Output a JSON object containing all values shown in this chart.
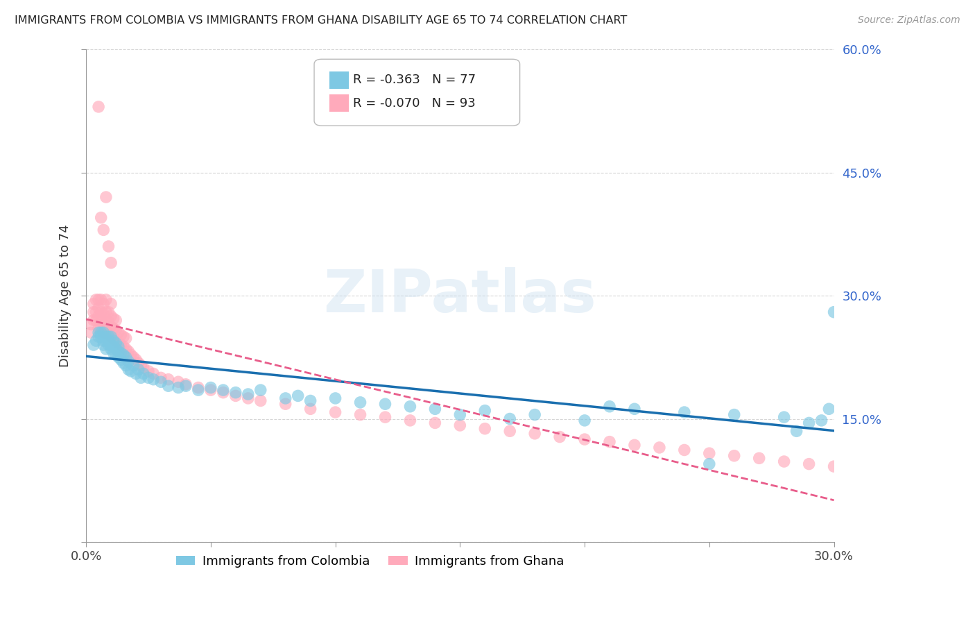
{
  "title": "IMMIGRANTS FROM COLOMBIA VS IMMIGRANTS FROM GHANA DISABILITY AGE 65 TO 74 CORRELATION CHART",
  "source": "Source: ZipAtlas.com",
  "ylabel": "Disability Age 65 to 74",
  "xlim": [
    0.0,
    0.3
  ],
  "ylim": [
    0.0,
    0.6
  ],
  "xticks": [
    0.0,
    0.05,
    0.1,
    0.15,
    0.2,
    0.25,
    0.3
  ],
  "xtick_labels": [
    "0.0%",
    "",
    "",
    "",
    "",
    "",
    "30.0%"
  ],
  "ytick_positions": [
    0.0,
    0.15,
    0.3,
    0.45,
    0.6
  ],
  "ytick_labels": [
    "",
    "15.0%",
    "30.0%",
    "45.0%",
    "60.0%"
  ],
  "legend_colombia": "Immigrants from Colombia",
  "legend_ghana": "Immigrants from Ghana",
  "R_colombia": "-0.363",
  "N_colombia": "77",
  "R_ghana": "-0.070",
  "N_ghana": "93",
  "color_colombia": "#7ec8e3",
  "color_ghana": "#ffaabb",
  "trend_colombia_color": "#1a6faf",
  "trend_ghana_color": "#e85c8a",
  "watermark": "ZIPatlas",
  "colombia_x": [
    0.003,
    0.004,
    0.005,
    0.005,
    0.006,
    0.006,
    0.007,
    0.007,
    0.007,
    0.008,
    0.008,
    0.008,
    0.009,
    0.009,
    0.009,
    0.01,
    0.01,
    0.01,
    0.011,
    0.011,
    0.011,
    0.012,
    0.012,
    0.012,
    0.013,
    0.013,
    0.013,
    0.014,
    0.014,
    0.015,
    0.015,
    0.016,
    0.016,
    0.017,
    0.017,
    0.018,
    0.019,
    0.02,
    0.021,
    0.022,
    0.023,
    0.025,
    0.027,
    0.03,
    0.033,
    0.037,
    0.04,
    0.045,
    0.05,
    0.055,
    0.06,
    0.065,
    0.07,
    0.08,
    0.085,
    0.09,
    0.1,
    0.11,
    0.12,
    0.13,
    0.14,
    0.15,
    0.16,
    0.17,
    0.18,
    0.2,
    0.21,
    0.22,
    0.24,
    0.26,
    0.28,
    0.29,
    0.295,
    0.298,
    0.3,
    0.285,
    0.25
  ],
  "colombia_y": [
    0.24,
    0.245,
    0.25,
    0.255,
    0.25,
    0.255,
    0.24,
    0.245,
    0.255,
    0.235,
    0.245,
    0.25,
    0.24,
    0.245,
    0.25,
    0.235,
    0.24,
    0.25,
    0.23,
    0.238,
    0.245,
    0.228,
    0.235,
    0.242,
    0.225,
    0.232,
    0.238,
    0.222,
    0.23,
    0.218,
    0.228,
    0.215,
    0.225,
    0.21,
    0.22,
    0.208,
    0.215,
    0.205,
    0.21,
    0.2,
    0.205,
    0.2,
    0.198,
    0.195,
    0.19,
    0.188,
    0.19,
    0.185,
    0.188,
    0.185,
    0.182,
    0.18,
    0.185,
    0.175,
    0.178,
    0.172,
    0.175,
    0.17,
    0.168,
    0.165,
    0.162,
    0.155,
    0.16,
    0.15,
    0.155,
    0.148,
    0.165,
    0.162,
    0.158,
    0.155,
    0.152,
    0.145,
    0.148,
    0.162,
    0.28,
    0.135,
    0.095
  ],
  "ghana_x": [
    0.002,
    0.002,
    0.003,
    0.003,
    0.003,
    0.004,
    0.004,
    0.004,
    0.005,
    0.005,
    0.005,
    0.005,
    0.006,
    0.006,
    0.006,
    0.006,
    0.007,
    0.007,
    0.007,
    0.007,
    0.008,
    0.008,
    0.008,
    0.008,
    0.009,
    0.009,
    0.009,
    0.01,
    0.01,
    0.01,
    0.01,
    0.011,
    0.011,
    0.011,
    0.012,
    0.012,
    0.012,
    0.013,
    0.013,
    0.014,
    0.014,
    0.015,
    0.015,
    0.016,
    0.016,
    0.017,
    0.018,
    0.019,
    0.02,
    0.021,
    0.022,
    0.023,
    0.025,
    0.027,
    0.03,
    0.033,
    0.037,
    0.04,
    0.045,
    0.05,
    0.055,
    0.06,
    0.065,
    0.07,
    0.08,
    0.09,
    0.1,
    0.11,
    0.12,
    0.13,
    0.14,
    0.15,
    0.16,
    0.17,
    0.18,
    0.19,
    0.2,
    0.21,
    0.22,
    0.23,
    0.24,
    0.25,
    0.26,
    0.27,
    0.28,
    0.29,
    0.3,
    0.005,
    0.006,
    0.007,
    0.008,
    0.009,
    0.01
  ],
  "ghana_y": [
    0.255,
    0.265,
    0.27,
    0.28,
    0.29,
    0.27,
    0.28,
    0.295,
    0.26,
    0.275,
    0.285,
    0.295,
    0.26,
    0.27,
    0.28,
    0.295,
    0.255,
    0.265,
    0.278,
    0.29,
    0.255,
    0.268,
    0.28,
    0.295,
    0.255,
    0.268,
    0.28,
    0.25,
    0.262,
    0.275,
    0.29,
    0.248,
    0.26,
    0.272,
    0.245,
    0.258,
    0.27,
    0.242,
    0.255,
    0.24,
    0.252,
    0.238,
    0.25,
    0.235,
    0.248,
    0.232,
    0.228,
    0.225,
    0.222,
    0.218,
    0.215,
    0.212,
    0.208,
    0.205,
    0.2,
    0.198,
    0.195,
    0.192,
    0.188,
    0.185,
    0.182,
    0.178,
    0.175,
    0.172,
    0.168,
    0.162,
    0.158,
    0.155,
    0.152,
    0.148,
    0.145,
    0.142,
    0.138,
    0.135,
    0.132,
    0.128,
    0.125,
    0.122,
    0.118,
    0.115,
    0.112,
    0.108,
    0.105,
    0.102,
    0.098,
    0.095,
    0.092,
    0.53,
    0.395,
    0.38,
    0.42,
    0.36,
    0.34
  ]
}
